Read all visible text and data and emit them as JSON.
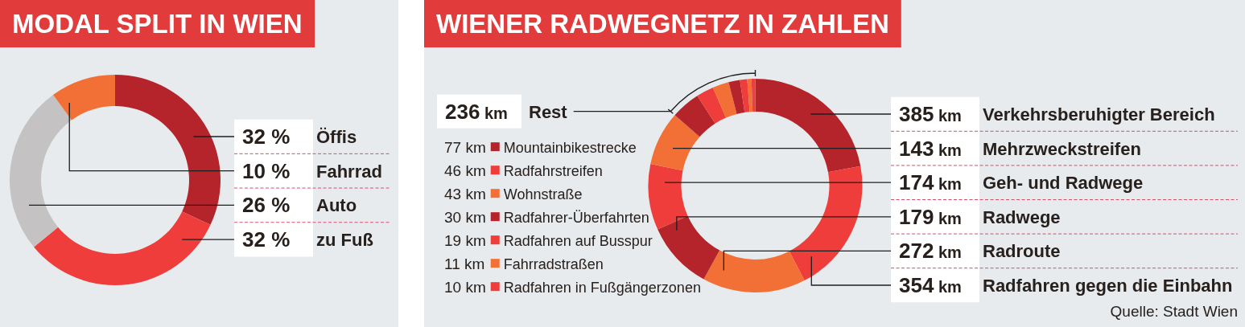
{
  "chart_data": [
    {
      "type": "donut",
      "title": "MODAL SPLIT IN WIEN",
      "categories": [
        "Öffis",
        "zu Fuß",
        "Auto",
        "Fahrrad"
      ],
      "values": [
        32,
        32,
        26,
        10
      ],
      "colors": [
        "#b5232b",
        "#ee3d3a",
        "#c4c2c3",
        "#f26f36"
      ],
      "value_labels": [
        "32 %",
        "32 %",
        "26 %",
        "10 %"
      ]
    },
    {
      "type": "donut",
      "title": "WIENER RADWEGNETZ IN ZAHLEN",
      "categories": [
        "Verkehrsberuhigter Bereich",
        "Radfahren gegen die Einbahn",
        "Radroute",
        "Radwege",
        "Geh- und Radwege",
        "Mehrzweckstreifen",
        "Mountainbikestrecke",
        "Radfahrstreifen",
        "Wohnstraße",
        "Radfahrer-Überfahrten",
        "Radfahren auf Busspur",
        "Fahrradstraßen",
        "Radfahren in Fußgängerzonen"
      ],
      "values": [
        385,
        354,
        272,
        179,
        174,
        143,
        77,
        46,
        43,
        30,
        19,
        11,
        10
      ],
      "colors": [
        "#b5232b",
        "#ee3d3a",
        "#f26f36",
        "#b5232b",
        "#ee3d3a",
        "#f26f36",
        "#b5232b",
        "#ee3d3a",
        "#f26f36",
        "#b5232b",
        "#ee3d3a",
        "#f26f36",
        "#ee3d3a"
      ],
      "value_labels": [
        "385 km",
        "354 km",
        "272 km",
        "179 km",
        "174 km",
        "143 km",
        "77 km",
        "46 km",
        "43 km",
        "30 km",
        "19 km",
        "11 km",
        "10 km"
      ],
      "legend": "left",
      "annotations": [
        "236 km Rest",
        "Quelle: Stadt Wien"
      ]
    }
  ]
}
